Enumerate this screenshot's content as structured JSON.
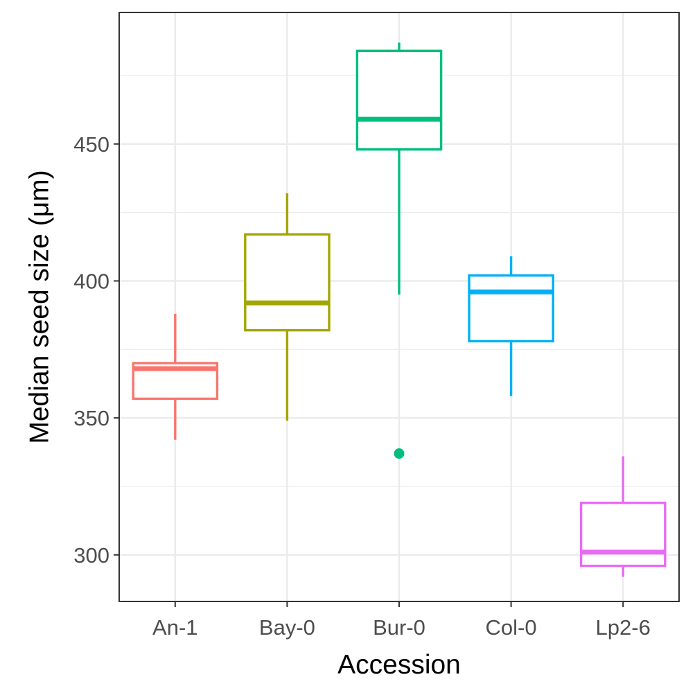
{
  "chart_data": {
    "type": "boxplot",
    "xlabel": "Accession",
    "ylabel": "Median seed size (μm)",
    "ylim": [
      283,
      498
    ],
    "y_major_ticks": [
      300,
      350,
      400,
      450
    ],
    "y_minor_ticks": [
      325,
      375,
      425,
      475
    ],
    "grid": true,
    "legend": "none",
    "categories": [
      "An-1",
      "Bay-0",
      "Bur-0",
      "Col-0",
      "Lp2-6"
    ],
    "boxes": [
      {
        "category": "An-1",
        "color": "#F8766D",
        "whisker_low": 342,
        "q1": 357,
        "median": 368,
        "q3": 370,
        "whisker_high": 388,
        "outliers": []
      },
      {
        "category": "Bay-0",
        "color": "#A3A500",
        "whisker_low": 349,
        "q1": 382,
        "median": 392,
        "q3": 417,
        "whisker_high": 432,
        "outliers": []
      },
      {
        "category": "Bur-0",
        "color": "#00BF7D",
        "whisker_low": 395,
        "q1": 448,
        "median": 459,
        "q3": 484,
        "whisker_high": 487,
        "outliers": [
          337
        ]
      },
      {
        "category": "Col-0",
        "color": "#00B0F6",
        "whisker_low": 358,
        "q1": 378,
        "median": 396,
        "q3": 402,
        "whisker_high": 409,
        "outliers": []
      },
      {
        "category": "Lp2-6",
        "color": "#E76BF3",
        "whisker_low": 292,
        "q1": 296,
        "median": 301,
        "q3": 319,
        "whisker_high": 336,
        "outliers": []
      }
    ]
  }
}
